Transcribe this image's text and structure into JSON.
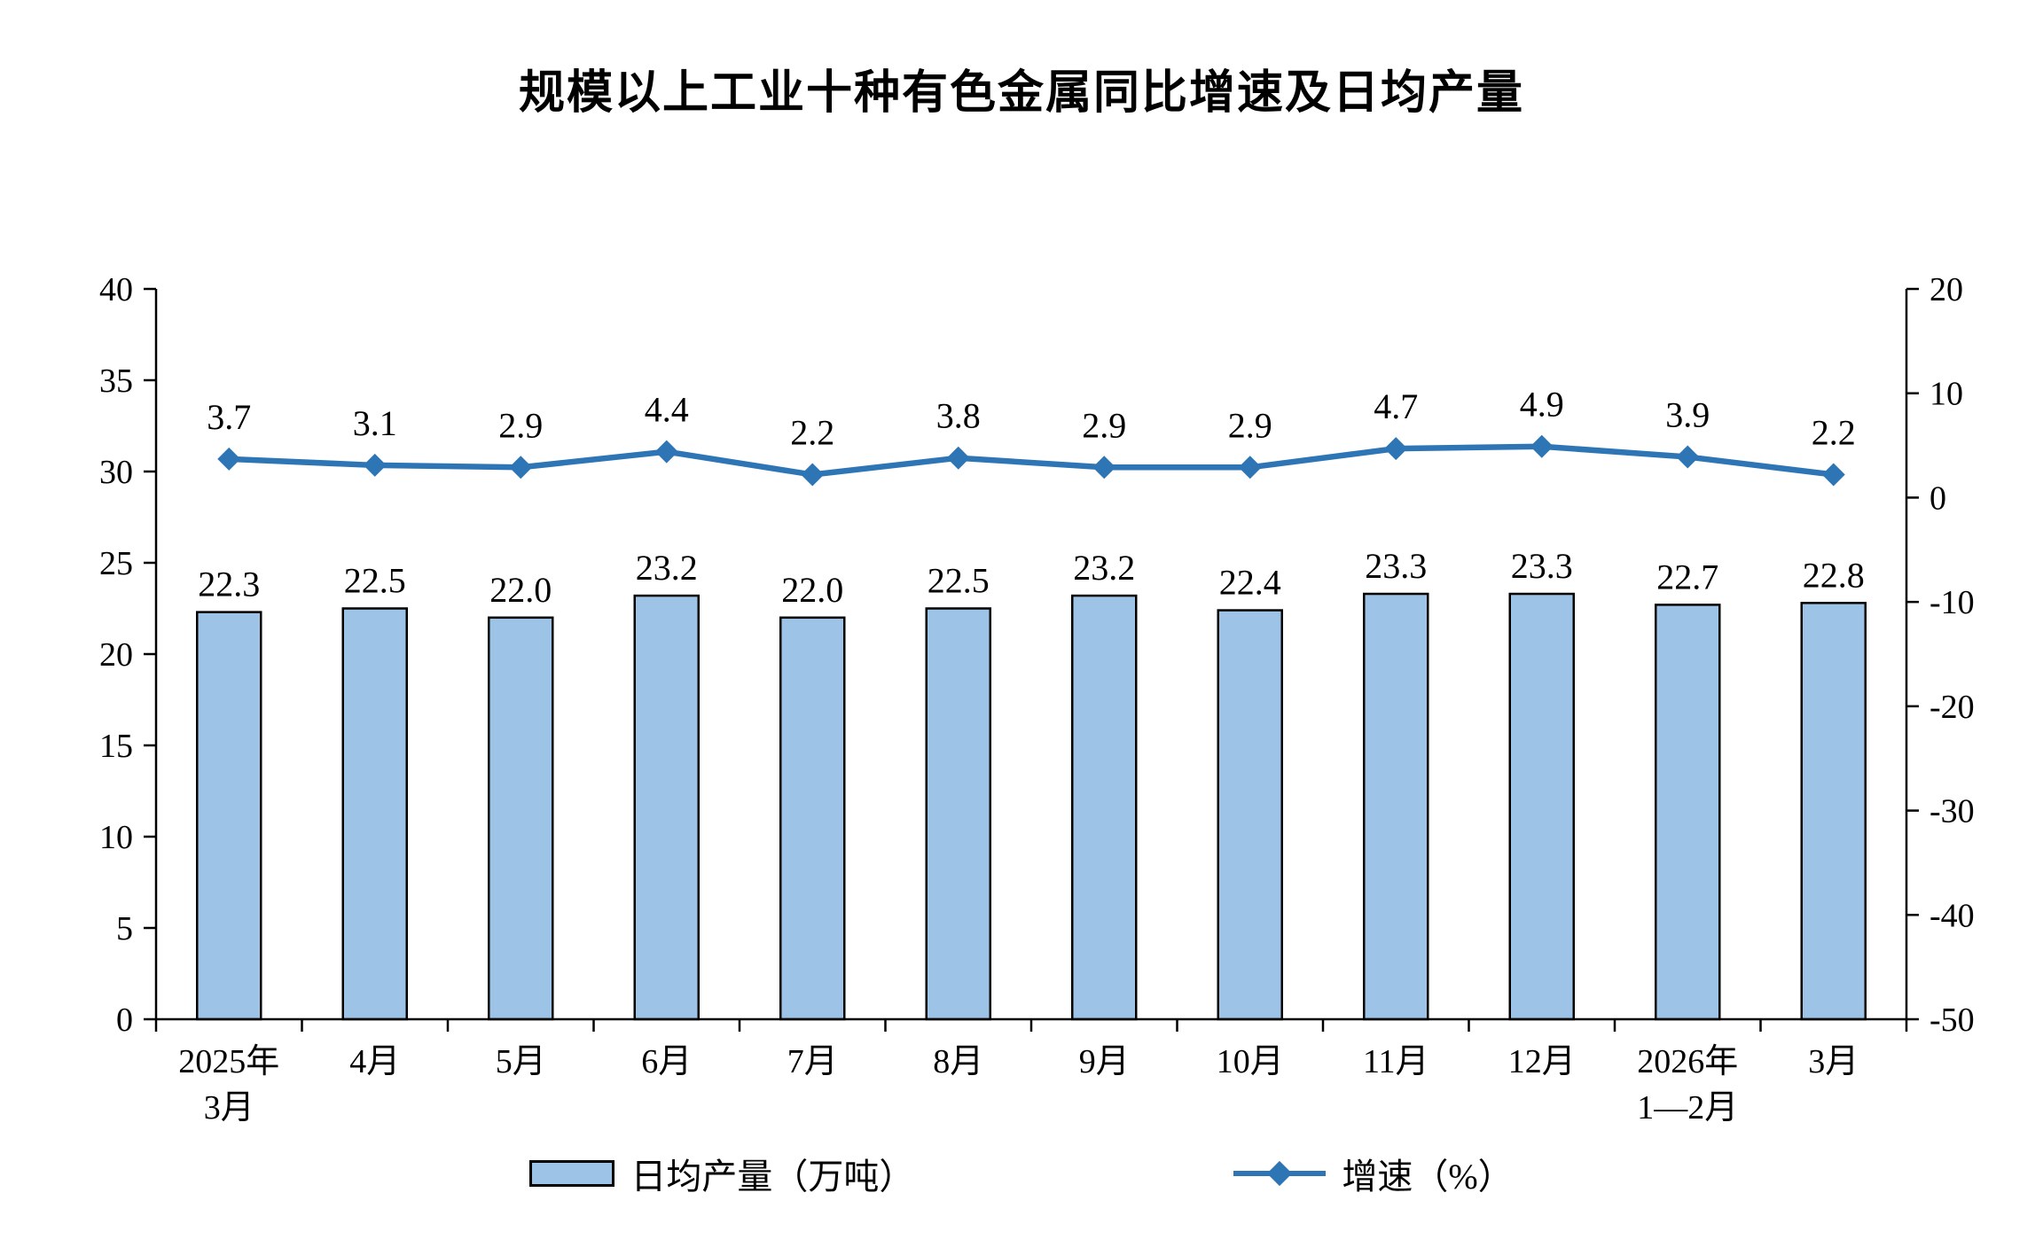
{
  "title": "规模以上工业十种有色金属同比增速及日均产量",
  "legend": {
    "bar_label": "日均产量（万吨）",
    "line_label": "增速（%）"
  },
  "colors": {
    "bar_fill": "#9DC3E6",
    "bar_stroke": "#000000",
    "line_color": "#2E75B6",
    "axis_color": "#000000"
  },
  "chart_data": {
    "type": "bar",
    "subtype": "combo-bar-line",
    "title": "规模以上工业十种有色金属同比增速及日均产量",
    "categories": [
      [
        "2025年",
        "3月"
      ],
      [
        "4月"
      ],
      [
        "5月"
      ],
      [
        "6月"
      ],
      [
        "7月"
      ],
      [
        "8月"
      ],
      [
        "9月"
      ],
      [
        "10月"
      ],
      [
        "11月"
      ],
      [
        "12月"
      ],
      [
        "2026年",
        "1—2月"
      ],
      [
        "3月"
      ]
    ],
    "series": [
      {
        "name": "日均产量（万吨）",
        "type": "bar",
        "axis": "left",
        "values": [
          22.3,
          22.5,
          22.0,
          23.2,
          22.0,
          22.5,
          23.2,
          22.4,
          23.3,
          23.3,
          22.7,
          22.8
        ]
      },
      {
        "name": "增速（%）",
        "type": "line",
        "axis": "right",
        "values": [
          3.7,
          3.1,
          2.9,
          4.4,
          2.2,
          3.8,
          2.9,
          2.9,
          4.7,
          4.9,
          3.9,
          2.2
        ]
      }
    ],
    "axes": {
      "left": {
        "min": 0,
        "max": 40,
        "step": 5,
        "ticks": [
          0,
          5,
          10,
          15,
          20,
          25,
          30,
          35,
          40
        ]
      },
      "right": {
        "min": -50,
        "max": 20,
        "step": 10,
        "ticks": [
          20,
          10,
          0,
          -10,
          -20,
          -30,
          -40,
          -50
        ]
      }
    },
    "grid": false,
    "legend_position": "bottom",
    "xlabel": "",
    "ylabel_left": "",
    "ylabel_right": ""
  }
}
